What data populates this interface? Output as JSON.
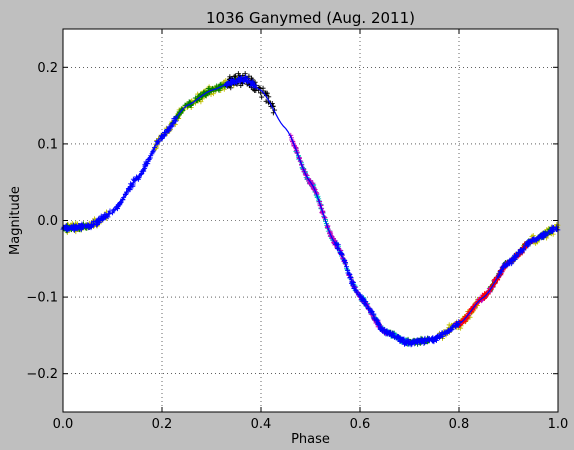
{
  "chart_data": {
    "type": "scatter",
    "title": "1036 Ganymed (Aug. 2011)",
    "xlabel": "Phase",
    "ylabel": "Magnitude",
    "xlim": [
      0.0,
      1.0
    ],
    "ylim": [
      -0.25,
      0.25
    ],
    "y_inverted": false,
    "grid": true,
    "marker": "+",
    "x_ticks": [
      "0.0",
      "0.2",
      "0.4",
      "0.6",
      "0.8",
      "1.0"
    ],
    "y_ticks": [
      "−0.2",
      "−0.1",
      "0.0",
      "0.1",
      "0.2"
    ],
    "x_tick_values": [
      0.0,
      0.2,
      0.4,
      0.6,
      0.8,
      1.0
    ],
    "y_tick_values": [
      -0.2,
      -0.1,
      0.0,
      0.1,
      0.2
    ],
    "series": [
      {
        "color": "#bfbf00",
        "segments": [
          [
            0.0,
            0.09
          ],
          [
            0.185,
            0.36
          ],
          [
            0.76,
            0.84
          ],
          [
            0.92,
            1.0
          ]
        ]
      },
      {
        "color": "#008000",
        "segments": [
          [
            0.0,
            0.05
          ],
          [
            0.22,
            0.35
          ],
          [
            0.66,
            0.74
          ],
          [
            0.86,
            0.99
          ]
        ]
      },
      {
        "color": "#000000",
        "segments": [
          [
            0.33,
            0.43
          ]
        ]
      },
      {
        "color": "#00bfbf",
        "segments": [
          [
            0.47,
            0.7
          ]
        ]
      },
      {
        "color": "#bf00bf",
        "segments": [
          [
            0.46,
            0.66
          ],
          [
            0.79,
            0.9
          ]
        ]
      },
      {
        "color": "#ff0000",
        "segments": [
          [
            0.8,
            0.95
          ]
        ]
      },
      {
        "color": "#0000ff",
        "segments": [
          [
            0.0,
            0.23
          ],
          [
            0.33,
            0.39
          ],
          [
            0.55,
            0.8
          ],
          [
            0.88,
            1.0
          ]
        ]
      }
    ],
    "fit_curve": {
      "color": "#0000ff",
      "x": [
        0.0,
        0.05,
        0.1,
        0.15,
        0.2,
        0.25,
        0.3,
        0.35,
        0.37,
        0.4,
        0.45,
        0.5,
        0.55,
        0.6,
        0.65,
        0.7,
        0.75,
        0.8,
        0.85,
        0.9,
        0.95,
        1.0
      ],
      "y": [
        -0.01,
        -0.008,
        0.01,
        0.055,
        0.11,
        0.15,
        0.17,
        0.183,
        0.184,
        0.17,
        0.12,
        0.05,
        -0.03,
        -0.1,
        -0.145,
        -0.16,
        -0.155,
        -0.135,
        -0.1,
        -0.055,
        -0.025,
        -0.01
      ]
    }
  }
}
